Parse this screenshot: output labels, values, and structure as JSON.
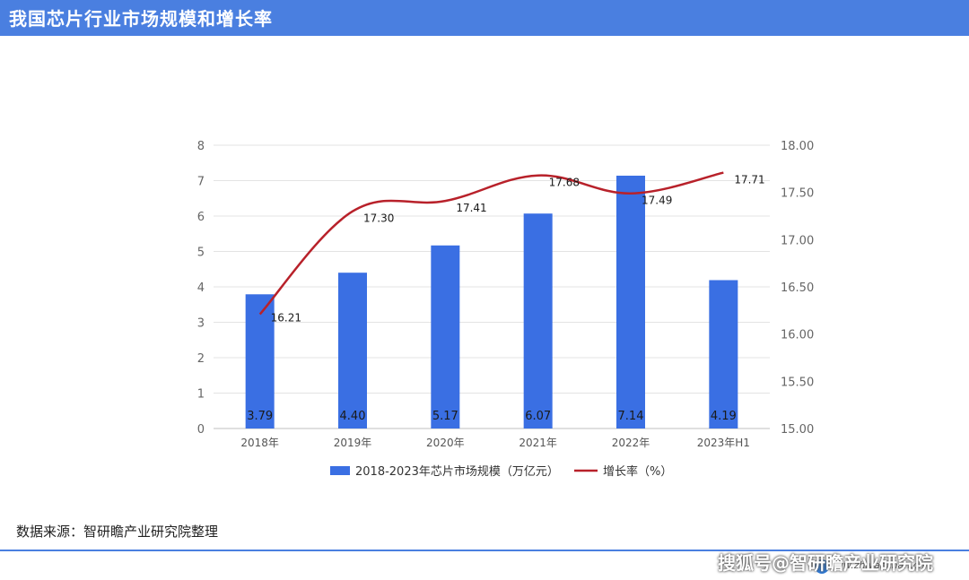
{
  "header": {
    "title": "我国芯片行业市场规模和增长率"
  },
  "chart_data": {
    "type": "bar",
    "categories": [
      "2018年",
      "2019年",
      "2020年",
      "2021年",
      "2022年",
      "2023年H1"
    ],
    "series": [
      {
        "name": "2018-2023年芯片市场规模（万亿元）",
        "type": "bar",
        "axis": "left",
        "values": [
          3.79,
          4.4,
          5.17,
          6.07,
          7.14,
          4.19
        ],
        "labels": [
          "3.79",
          "4.40",
          "5.17",
          "6.07",
          "7.14",
          "4.19"
        ],
        "color": "#3a6fe3"
      },
      {
        "name": "增长率（%）",
        "type": "line",
        "axis": "right",
        "values": [
          16.21,
          17.3,
          17.41,
          17.68,
          17.49,
          17.71
        ],
        "labels": [
          "16.21",
          "17.30",
          "17.41",
          "17.68",
          "17.49",
          "17.71"
        ],
        "color": "#b8212a"
      }
    ],
    "y_left": {
      "min": 0,
      "max": 8,
      "ticks": [
        "0",
        "1",
        "2",
        "3",
        "4",
        "5",
        "6",
        "7",
        "8"
      ]
    },
    "y_right": {
      "min": 15.0,
      "max": 18.0,
      "ticks": [
        "15.00",
        "15.50",
        "16.00",
        "16.50",
        "17.00",
        "17.50",
        "18.00"
      ]
    },
    "grid": true,
    "legend": "bottom"
  },
  "source": "数据来源：智研瞻产业研究院整理",
  "footer": {
    "site": "www.zhiyanzhan.cn",
    "watermark": "搜狐号@智研瞻产业研究院"
  },
  "colors": {
    "header_bg": "#4a7fe0"
  }
}
